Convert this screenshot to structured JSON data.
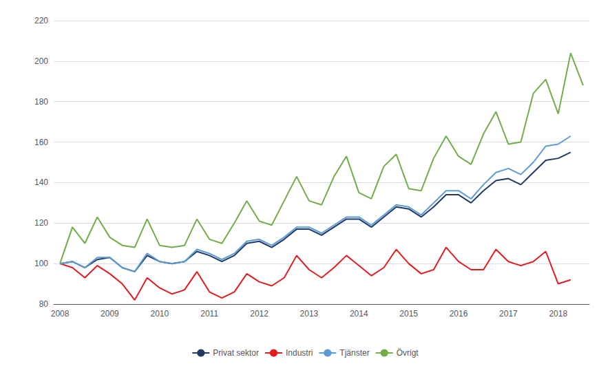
{
  "chart_data": {
    "type": "line",
    "categories": [
      "2008",
      null,
      null,
      null,
      "2009",
      null,
      null,
      null,
      "2010",
      null,
      null,
      null,
      "2011",
      null,
      null,
      null,
      "2012",
      null,
      null,
      null,
      "2013",
      null,
      null,
      null,
      "2014",
      null,
      null,
      null,
      "2015",
      null,
      null,
      null,
      "2016",
      null,
      null,
      null,
      "2017",
      null,
      null,
      null,
      "2018",
      null,
      null
    ],
    "series": [
      {
        "name": "Privat sektor",
        "color": "#1f3864",
        "values": [
          100,
          101,
          98,
          102,
          103,
          98,
          96,
          104,
          101,
          100,
          101,
          106,
          104,
          101,
          104,
          110,
          111,
          108,
          112,
          117,
          117,
          114,
          118,
          122,
          122,
          118,
          123,
          128,
          127,
          123,
          128,
          134,
          134,
          130,
          136,
          141,
          142,
          139,
          145,
          151,
          152,
          155,
          null
        ]
      },
      {
        "name": "Industri",
        "color": "#e41a1c",
        "values": [
          100,
          98,
          93,
          99,
          95,
          90,
          82,
          93,
          88,
          85,
          87,
          96,
          86,
          83,
          86,
          95,
          91,
          89,
          93,
          104,
          97,
          93,
          98,
          104,
          99,
          94,
          98,
          107,
          100,
          95,
          97,
          108,
          101,
          97,
          97,
          107,
          101,
          99,
          101,
          106,
          90,
          92,
          null
        ]
      },
      {
        "name": "Tjänster",
        "color": "#5b9bd5",
        "values": [
          100,
          101,
          98,
          103,
          103,
          98,
          96,
          105,
          101,
          100,
          101,
          107,
          105,
          102,
          105,
          111,
          112,
          109,
          113,
          118,
          118,
          115,
          119,
          123,
          123,
          119,
          124,
          129,
          128,
          124,
          130,
          136,
          136,
          132,
          139,
          145,
          147,
          144,
          150,
          158,
          159,
          163,
          null
        ]
      },
      {
        "name": "Övrigt",
        "color": "#70ad47",
        "values": [
          100,
          118,
          110,
          123,
          113,
          109,
          108,
          122,
          109,
          108,
          109,
          122,
          112,
          110,
          120,
          131,
          121,
          119,
          131,
          143,
          131,
          129,
          143,
          153,
          135,
          132,
          148,
          154,
          137,
          136,
          152,
          163,
          153,
          149,
          164,
          175,
          159,
          160,
          184,
          191,
          174,
          204,
          188
        ]
      }
    ],
    "ylim": [
      80,
      220
    ],
    "yticks": [
      80,
      100,
      120,
      140,
      160,
      180,
      200,
      220
    ],
    "grid": true,
    "legend": "bottom"
  }
}
